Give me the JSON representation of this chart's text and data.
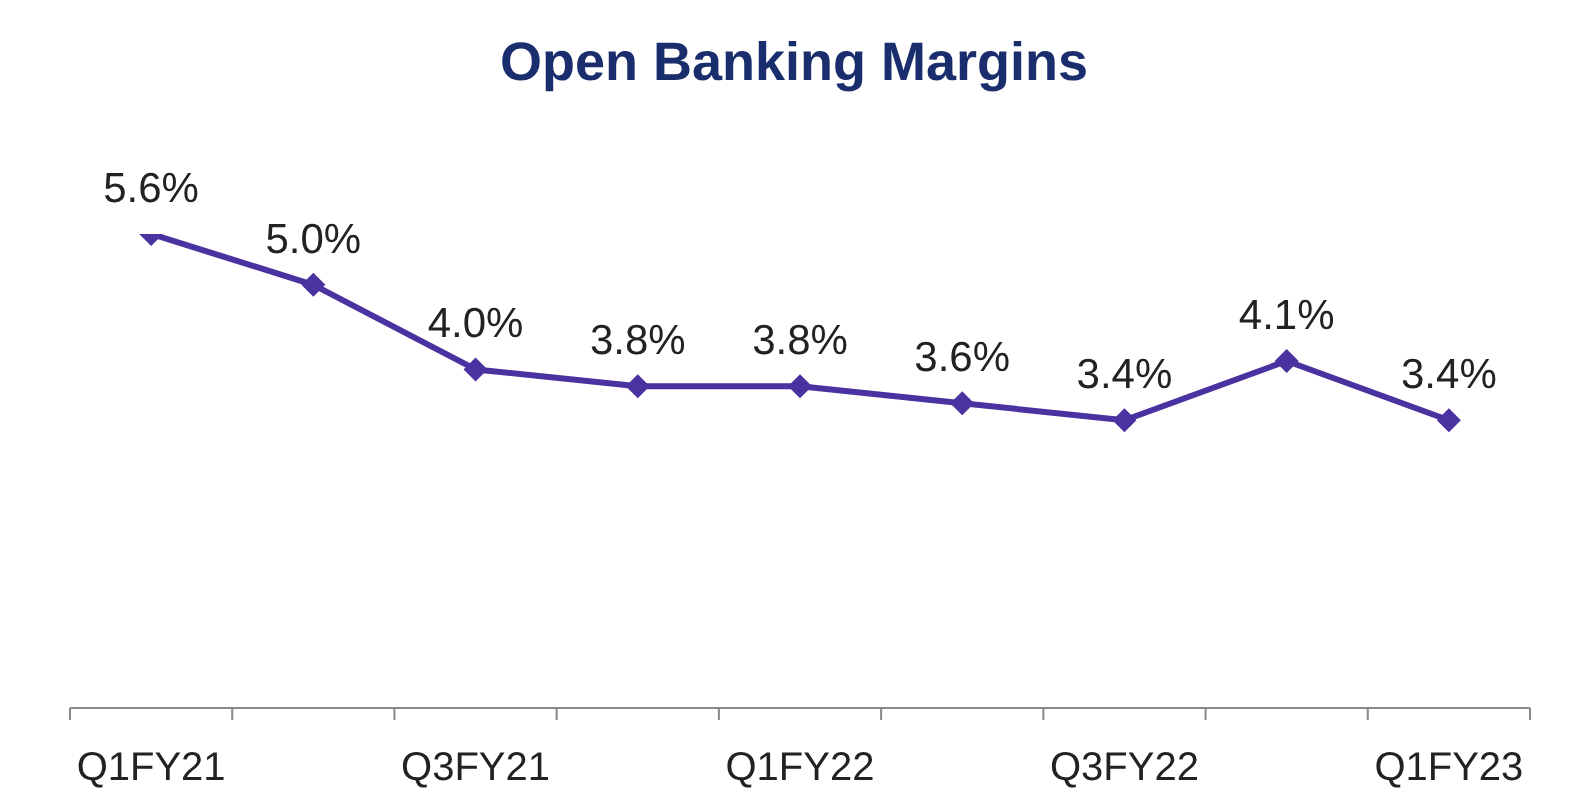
{
  "chart_data": {
    "type": "line",
    "title": "Open Banking Margins",
    "categories": [
      "Q1FY21",
      null,
      "Q3FY21",
      null,
      "Q1FY22",
      null,
      "Q3FY22",
      null,
      "Q1FY23"
    ],
    "series": [
      {
        "color": "#4a32a0",
        "values": [
          5.6,
          5.0,
          4.0,
          3.8,
          3.8,
          3.6,
          3.4,
          4.1,
          3.4
        ],
        "value_labels": [
          "5.6%",
          "5.0%",
          "4.0%",
          "3.8%",
          "3.8%",
          "3.6%",
          "3.4%",
          "4.1%",
          "3.4%"
        ]
      }
    ],
    "tick_labels": "x",
    "marker": "diamond",
    "line_style": "solid"
  }
}
